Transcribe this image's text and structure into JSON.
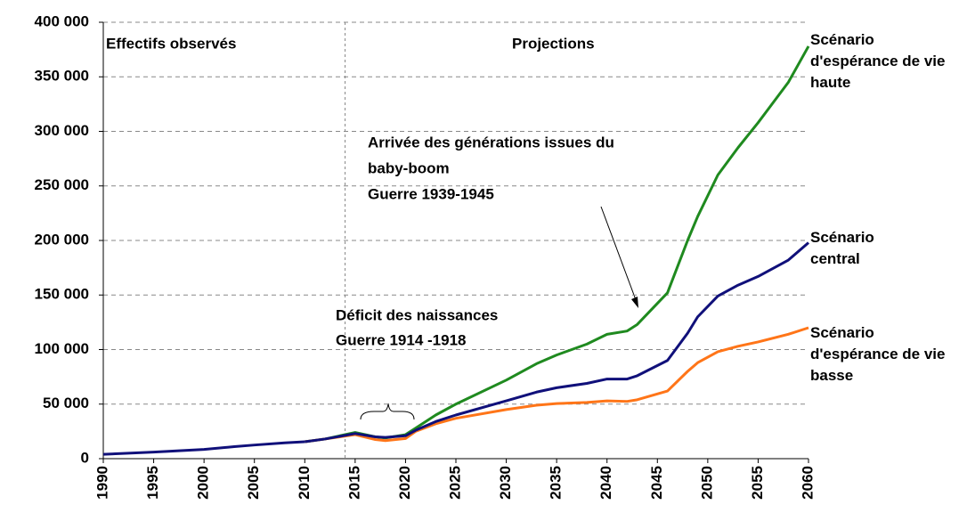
{
  "chart_data": {
    "type": "line",
    "x": [
      1990,
      1995,
      2000,
      2003,
      2005,
      2008,
      2010,
      2012,
      2015,
      2017,
      2018,
      2020,
      2021,
      2023,
      2025,
      2030,
      2033,
      2035,
      2038,
      2040,
      2042,
      2043,
      2046,
      2048,
      2049,
      2051,
      2053,
      2055,
      2058,
      2060
    ],
    "series": [
      {
        "name": "Effectifs observés",
        "color": "#10107a",
        "values": [
          4000,
          6000,
          8500,
          11000,
          12500,
          14500,
          15500,
          null,
          null,
          null,
          null,
          null,
          null,
          null,
          null,
          null,
          null,
          null,
          null,
          null,
          null,
          null,
          null,
          null,
          null,
          null,
          null,
          null,
          null,
          null
        ]
      },
      {
        "name": "Scénario d'espérance de vie haute",
        "color": "#1f8a1f",
        "values": [
          null,
          null,
          null,
          null,
          null,
          null,
          15500,
          18000,
          24000,
          20000,
          19000,
          22000,
          28000,
          40000,
          50000,
          72000,
          87000,
          95000,
          105000,
          114000,
          117000,
          123000,
          152000,
          200000,
          222000,
          260000,
          285000,
          308000,
          345000,
          378000
        ]
      },
      {
        "name": "Scénario central",
        "color": "#10107a",
        "values": [
          null,
          null,
          null,
          null,
          null,
          null,
          15500,
          18000,
          23000,
          20000,
          19500,
          21000,
          26000,
          34000,
          40000,
          53000,
          61000,
          65000,
          69000,
          73000,
          73000,
          76000,
          90000,
          115000,
          130000,
          149000,
          159000,
          167000,
          182000,
          198000
        ]
      },
      {
        "name": "Scénario d'espérance de vie basse",
        "color": "#ff7518",
        "values": [
          null,
          null,
          null,
          null,
          null,
          null,
          15500,
          18000,
          22000,
          17500,
          16500,
          18500,
          25000,
          32000,
          37000,
          45000,
          49000,
          50500,
          51500,
          53000,
          52500,
          54000,
          62000,
          80000,
          88000,
          98000,
          103000,
          107000,
          114000,
          120000
        ]
      }
    ],
    "xlim": [
      1990,
      2060
    ],
    "xticks": [
      1990,
      1995,
      2000,
      2005,
      2010,
      2015,
      2020,
      2025,
      2030,
      2035,
      2040,
      2045,
      2050,
      2055,
      2060
    ],
    "ylim": [
      0,
      400000
    ],
    "yticks": [
      0,
      {
        "value": 50000,
        "label": "50 000"
      },
      {
        "value": 100000,
        "label": "100 000"
      },
      {
        "value": 150000,
        "label": "150 000"
      },
      {
        "value": 200000,
        "label": "200 000"
      },
      {
        "value": 250000,
        "label": "250 000"
      },
      {
        "value": 300000,
        "label": "300 000"
      },
      {
        "value": 350000,
        "label": "350 000"
      },
      {
        "value": 400000,
        "label": "400 000"
      }
    ],
    "grid": true,
    "divider_x": 2014,
    "annotations": {
      "projections": "Projections",
      "baby_boom": [
        "Arrivée des générations issues du",
        "baby-boom",
        "Guerre 1939-1945"
      ],
      "deficit": [
        "Déficit des naissances",
        "Guerre 1914 -1918"
      ]
    }
  }
}
